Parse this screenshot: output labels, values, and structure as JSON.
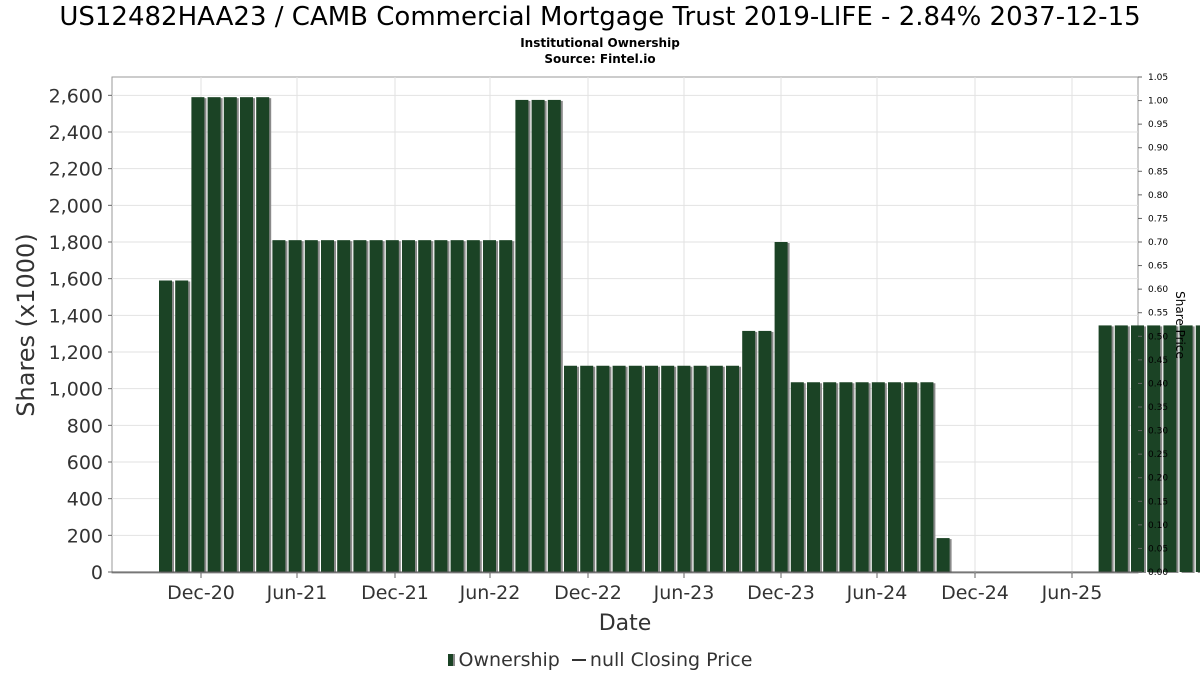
{
  "chart_data": {
    "type": "bar",
    "title": "US12482HAA23 / CAMB Commercial Mortgage Trust 2019-LIFE - 2.84% 2037-12-15",
    "subtitle_lines": [
      "Institutional Ownership",
      "Source: Fintel.io"
    ],
    "xlabel": "Date",
    "ylabel": "Shares (x1000)",
    "y2label": "Share Price",
    "ylim": [
      0,
      2700
    ],
    "y_ticks": [
      0,
      200,
      400,
      600,
      800,
      1000,
      1200,
      1400,
      1600,
      1800,
      2000,
      2200,
      2400,
      2600
    ],
    "y_tick_labels": [
      "0",
      "200",
      "400",
      "600",
      "800",
      "1,000",
      "1,200",
      "1,400",
      "1,600",
      "1,800",
      "2,000",
      "2,200",
      "2,400",
      "2,600"
    ],
    "y2lim": [
      0,
      1.05
    ],
    "y2_tick_labels": [
      "0.00",
      "0.05",
      "0.10",
      "0.15",
      "0.20",
      "0.25",
      "0.30",
      "0.35",
      "0.40",
      "0.45",
      "0.50",
      "0.55",
      "0.60",
      "0.65",
      "0.70",
      "0.75",
      "0.80",
      "0.85",
      "0.90",
      "0.95",
      "1.00",
      "1.05"
    ],
    "x_tick_labels": [
      "Dec-20",
      "Jun-21",
      "Dec-21",
      "Jun-22",
      "Dec-22",
      "Jun-23",
      "Dec-23",
      "Jun-24",
      "Dec-24",
      "Jun-25"
    ],
    "grid": true,
    "legend_position": "bottom",
    "series": [
      {
        "name": "Ownership",
        "color": "#1b4325",
        "values": [
          1590,
          1590,
          2590,
          2590,
          2590,
          2590,
          2590,
          1810,
          1810,
          1810,
          1810,
          1810,
          1810,
          1810,
          1810,
          1810,
          1810,
          1810,
          1810,
          1810,
          1810,
          1810,
          2575,
          2575,
          2575,
          1125,
          1125,
          1125,
          1125,
          1125,
          1125,
          1125,
          1125,
          1125,
          1125,
          1125,
          1315,
          1315,
          1800,
          1035,
          1035,
          1035,
          1035,
          1035,
          1035,
          1035,
          1035,
          1035,
          185,
          0,
          0,
          0,
          0,
          0,
          0,
          0,
          0,
          0,
          1345,
          1345,
          1345,
          1345,
          1345,
          1345,
          1345,
          1345
        ]
      }
    ],
    "legend": {
      "ownership_label": "Ownership",
      "price_label": "null Closing Price"
    }
  }
}
